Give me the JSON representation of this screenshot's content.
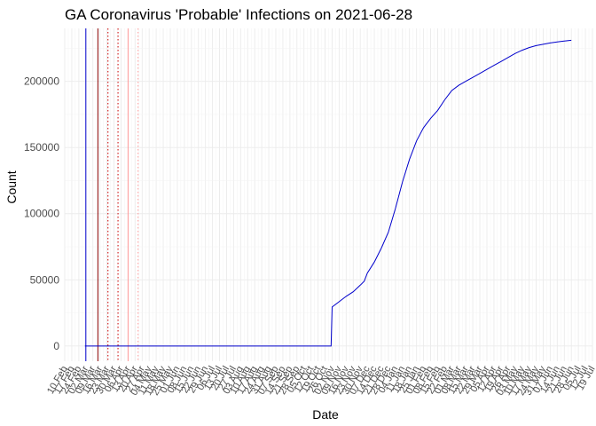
{
  "chart_data": {
    "type": "line",
    "title": "GA Coronavirus 'Probable' Infections on 2021-06-28",
    "xlabel": "Date",
    "ylabel": "Count",
    "x_range": [
      "2020-02-10",
      "2021-07-19"
    ],
    "ylim": [
      -11500,
      240000
    ],
    "y_ticks": [
      0,
      50000,
      100000,
      150000,
      200000
    ],
    "x_tick_labels": [
      "10 Feb",
      "17 Feb",
      "24 Feb",
      "02 Mar",
      "09 Mar",
      "16 Mar",
      "23 Mar",
      "30 Mar",
      "06 Apr",
      "13 Apr",
      "20 Apr",
      "27 Apr",
      "04 May",
      "11 May",
      "18 May",
      "25 May",
      "01 Jun",
      "08 Jun",
      "15 Jun",
      "22 Jun",
      "29 Jun",
      "06 Jul",
      "13 Jul",
      "20 Jul",
      "27 Jul",
      "03 Aug",
      "10 Aug",
      "17 Aug",
      "24 Aug",
      "31 Aug",
      "07 Sep",
      "14 Sep",
      "21 Sep",
      "28 Sep",
      "05 Oct",
      "12 Oct",
      "19 Oct",
      "26 Oct",
      "02 Nov",
      "09 Nov",
      "16 Nov",
      "23 Nov",
      "30 Nov",
      "07 Dec",
      "14 Dec",
      "21 Dec",
      "28 Dec",
      "04 Jan",
      "11 Jan",
      "18 Jan",
      "25 Jan",
      "01 Feb",
      "08 Feb",
      "15 Feb",
      "22 Feb",
      "01 Mar",
      "08 Mar",
      "15 Mar",
      "22 Mar",
      "29 Mar",
      "05 Apr",
      "12 Apr",
      "19 Apr",
      "26 Apr",
      "03 May",
      "10 May",
      "17 May",
      "24 May",
      "31 May",
      "07 Jun",
      "14 Jun",
      "21 Jun",
      "28 Jun",
      "05 Jul",
      "12 Jul",
      "19 Jul"
    ],
    "grid": true,
    "series": [
      {
        "color": "#0000cc",
        "points": [
          [
            "2020-03-01",
            0
          ],
          [
            "2020-05-01",
            0
          ],
          [
            "2020-07-01",
            0
          ],
          [
            "2020-09-01",
            0
          ],
          [
            "2020-11-01",
            0
          ],
          [
            "2020-11-02",
            29500
          ],
          [
            "2020-11-09",
            33500
          ],
          [
            "2020-11-16",
            37500
          ],
          [
            "2020-11-23",
            41000
          ],
          [
            "2020-11-30",
            46000
          ],
          [
            "2020-12-04",
            49000
          ],
          [
            "2020-12-07",
            55000
          ],
          [
            "2020-12-14",
            63500
          ],
          [
            "2020-12-21",
            74000
          ],
          [
            "2020-12-28",
            86000
          ],
          [
            "2021-01-04",
            104000
          ],
          [
            "2021-01-11",
            124000
          ],
          [
            "2021-01-18",
            141000
          ],
          [
            "2021-01-25",
            155000
          ],
          [
            "2021-02-01",
            165000
          ],
          [
            "2021-02-08",
            172000
          ],
          [
            "2021-02-15",
            178000
          ],
          [
            "2021-02-22",
            186000
          ],
          [
            "2021-03-01",
            193000
          ],
          [
            "2021-03-08",
            197000
          ],
          [
            "2021-03-15",
            200000
          ],
          [
            "2021-03-22",
            203000
          ],
          [
            "2021-03-29",
            206000
          ],
          [
            "2021-04-05",
            209000
          ],
          [
            "2021-04-12",
            212000
          ],
          [
            "2021-04-19",
            215000
          ],
          [
            "2021-04-26",
            218000
          ],
          [
            "2021-05-03",
            221000
          ],
          [
            "2021-05-10",
            223500
          ],
          [
            "2021-05-17",
            225500
          ],
          [
            "2021-05-24",
            227000
          ],
          [
            "2021-05-31",
            228000
          ],
          [
            "2021-06-07",
            229000
          ],
          [
            "2021-06-14",
            229800
          ],
          [
            "2021-06-21",
            230500
          ],
          [
            "2021-06-28",
            231000
          ]
        ]
      }
    ],
    "vertical_lines": [
      {
        "date": "2020-03-02",
        "color": "#0000cc",
        "style": "solid"
      },
      {
        "date": "2020-03-14",
        "color": "#8b0000",
        "style": "solid"
      },
      {
        "date": "2020-03-24",
        "color": "#cc0000",
        "style": "dotted"
      },
      {
        "date": "2020-04-03",
        "color": "#cc0000",
        "style": "dotted"
      },
      {
        "date": "2020-04-13",
        "color": "#ff9999",
        "style": "solid"
      },
      {
        "date": "2020-04-23",
        "color": "#ff9999",
        "style": "dotted"
      }
    ]
  }
}
